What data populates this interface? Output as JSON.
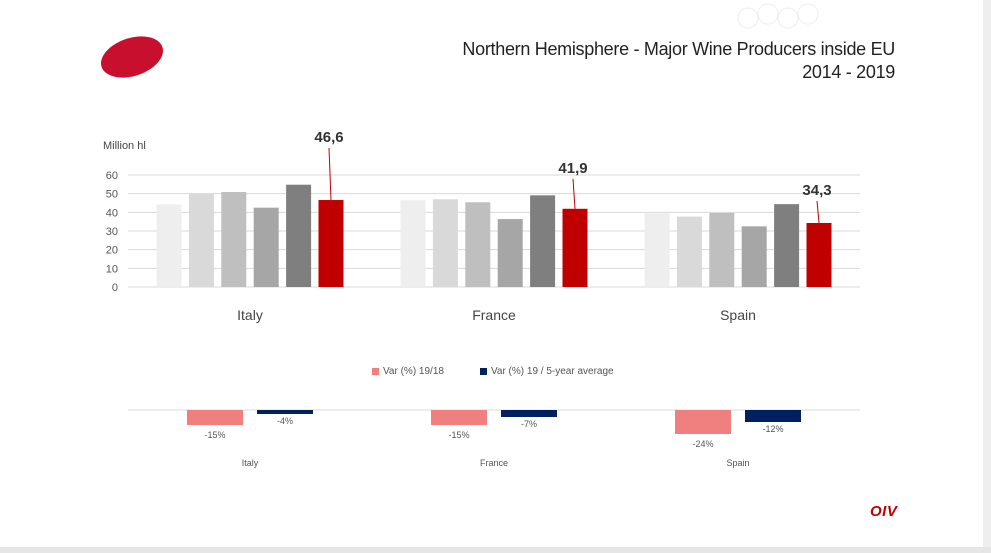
{
  "title": {
    "line1": "Northern Hemisphere - Major Wine Producers inside EU",
    "line2": "2014 - 2019"
  },
  "brand": {
    "logo_text": "OIV",
    "accent": "#c8102e"
  },
  "chart_data": [
    {
      "type": "bar",
      "ylabel": "Million hl",
      "ylim": [
        0,
        60
      ],
      "yticks": [
        0,
        10,
        20,
        30,
        40,
        50,
        60
      ],
      "categories": [
        "Italy",
        "France",
        "Spain"
      ],
      "series": [
        {
          "values": [
            44.2,
            46.5,
            39.5
          ],
          "color": "#eeeeee"
        },
        {
          "values": [
            50.0,
            47.0,
            37.7
          ],
          "color": "#d9d9d9"
        },
        {
          "values": [
            50.9,
            45.4,
            39.7
          ],
          "color": "#bfbfbf"
        },
        {
          "values": [
            42.5,
            36.4,
            32.5
          ],
          "color": "#a6a6a6"
        },
        {
          "values": [
            54.8,
            49.1,
            44.4
          ],
          "color": "#7f7f7f"
        },
        {
          "values": [
            46.6,
            41.9,
            34.3
          ],
          "color": "#c00000"
        }
      ],
      "highlight_labels": [
        "46,6",
        "41,9",
        "34,3"
      ],
      "grid": true
    },
    {
      "type": "bar",
      "categories": [
        "Italy",
        "France",
        "Spain"
      ],
      "series": [
        {
          "name": "Var (%) 19/18",
          "values": [
            -15,
            -15,
            -24
          ],
          "labels": [
            "-15%",
            "-15%",
            "-24%"
          ],
          "color": "#f08080"
        },
        {
          "name": "Var (%) 19 / 5-year average",
          "values": [
            -4,
            -7,
            -12
          ],
          "labels": [
            "-4%",
            "-7%",
            "-12%"
          ],
          "color": "#002060"
        }
      ],
      "legend": "top"
    }
  ]
}
